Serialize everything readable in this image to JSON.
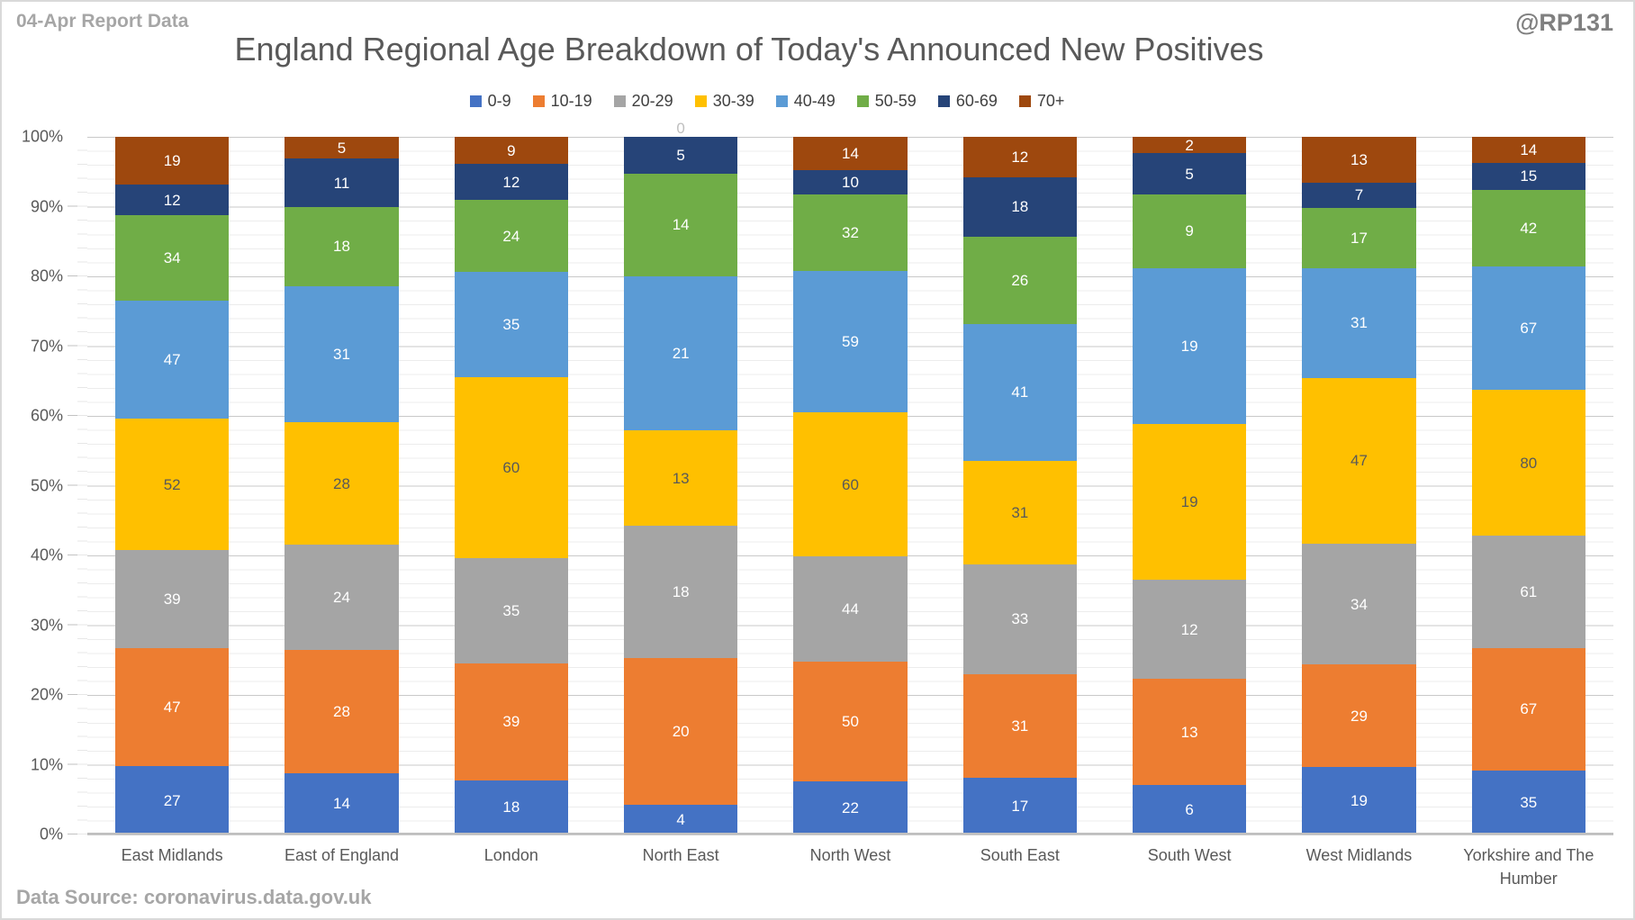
{
  "header": {
    "report_label": "04-Apr Report Data",
    "watermark": "@RP131"
  },
  "footer": {
    "source": "Data Source: coronavirus.data.gov.uk"
  },
  "chart_data": {
    "type": "bar",
    "subtype": "100-percent-stacked-column",
    "title": "England Regional Age Breakdown of Today's Announced New Positives",
    "legend_position": "top",
    "gridlines": {
      "major_interval": "10%",
      "minor_interval": "2%"
    },
    "zero_label_color": "#BFBFBF",
    "categories": [
      "East Midlands",
      "East of England",
      "London",
      "North East",
      "North West",
      "South East",
      "South West",
      "West Midlands",
      "Yorkshire and The Humber"
    ],
    "series": [
      {
        "name": "0-9",
        "color": "#4472C4",
        "label_color": "#FFFFFF",
        "values": [
          27,
          14,
          18,
          4,
          22,
          17,
          6,
          19,
          35
        ]
      },
      {
        "name": "10-19",
        "color": "#ED7D31",
        "label_color": "#FFFFFF",
        "values": [
          47,
          28,
          39,
          20,
          50,
          31,
          13,
          29,
          67
        ]
      },
      {
        "name": "20-29",
        "color": "#A5A5A5",
        "label_color": "#FFFFFF",
        "values": [
          39,
          24,
          35,
          18,
          44,
          33,
          12,
          34,
          61
        ]
      },
      {
        "name": "30-39",
        "color": "#FFC000",
        "label_color": "#595959",
        "values": [
          52,
          28,
          60,
          13,
          60,
          31,
          19,
          47,
          80
        ]
      },
      {
        "name": "40-49",
        "color": "#5B9BD5",
        "label_color": "#FFFFFF",
        "values": [
          47,
          31,
          35,
          21,
          59,
          41,
          19,
          31,
          67
        ]
      },
      {
        "name": "50-59",
        "color": "#70AD47",
        "label_color": "#FFFFFF",
        "values": [
          34,
          18,
          24,
          14,
          32,
          26,
          9,
          17,
          42
        ]
      },
      {
        "name": "60-69",
        "color": "#264478",
        "label_color": "#FFFFFF",
        "values": [
          12,
          11,
          12,
          5,
          10,
          18,
          5,
          7,
          15
        ]
      },
      {
        "name": "70+",
        "color": "#9E480E",
        "label_color": "#FFFFFF",
        "values": [
          19,
          5,
          9,
          0,
          14,
          12,
          2,
          13,
          14
        ]
      }
    ],
    "y_axis": {
      "min": 0,
      "max": 100,
      "ticks": [
        "0%",
        "10%",
        "20%",
        "30%",
        "40%",
        "50%",
        "60%",
        "70%",
        "80%",
        "90%",
        "100%"
      ]
    }
  }
}
